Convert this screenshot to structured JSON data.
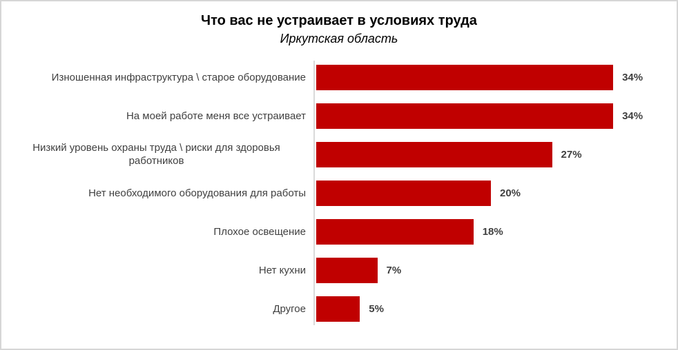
{
  "chart": {
    "title": "Что вас не устраивает в условиях труда",
    "subtitle": "Иркутская область"
  },
  "chart_data": {
    "type": "bar",
    "orientation": "horizontal",
    "title": "Что вас не устраивает в условиях труда",
    "subtitle": "Иркутская область",
    "categories": [
      "Изношенная инфраструктура \\ старое оборудование",
      "На моей работе меня все устраивает",
      "Низкий уровень охраны труда \\ риски для здоровья работников",
      "Нет необходимого оборудования для работы",
      "Плохое освещение",
      "Нет кухни",
      "Другое"
    ],
    "values": [
      34,
      34,
      27,
      20,
      18,
      7,
      5
    ],
    "value_labels": [
      "34%",
      "34%",
      "27%",
      "20%",
      "18%",
      "7%",
      "5%"
    ],
    "xlim": [
      0,
      40
    ],
    "grid": false,
    "legend": false,
    "bar_color": "#C00000",
    "axis_line_color": "#D9D9D9",
    "label_color": "#404040",
    "value_label_color": "#404040"
  }
}
